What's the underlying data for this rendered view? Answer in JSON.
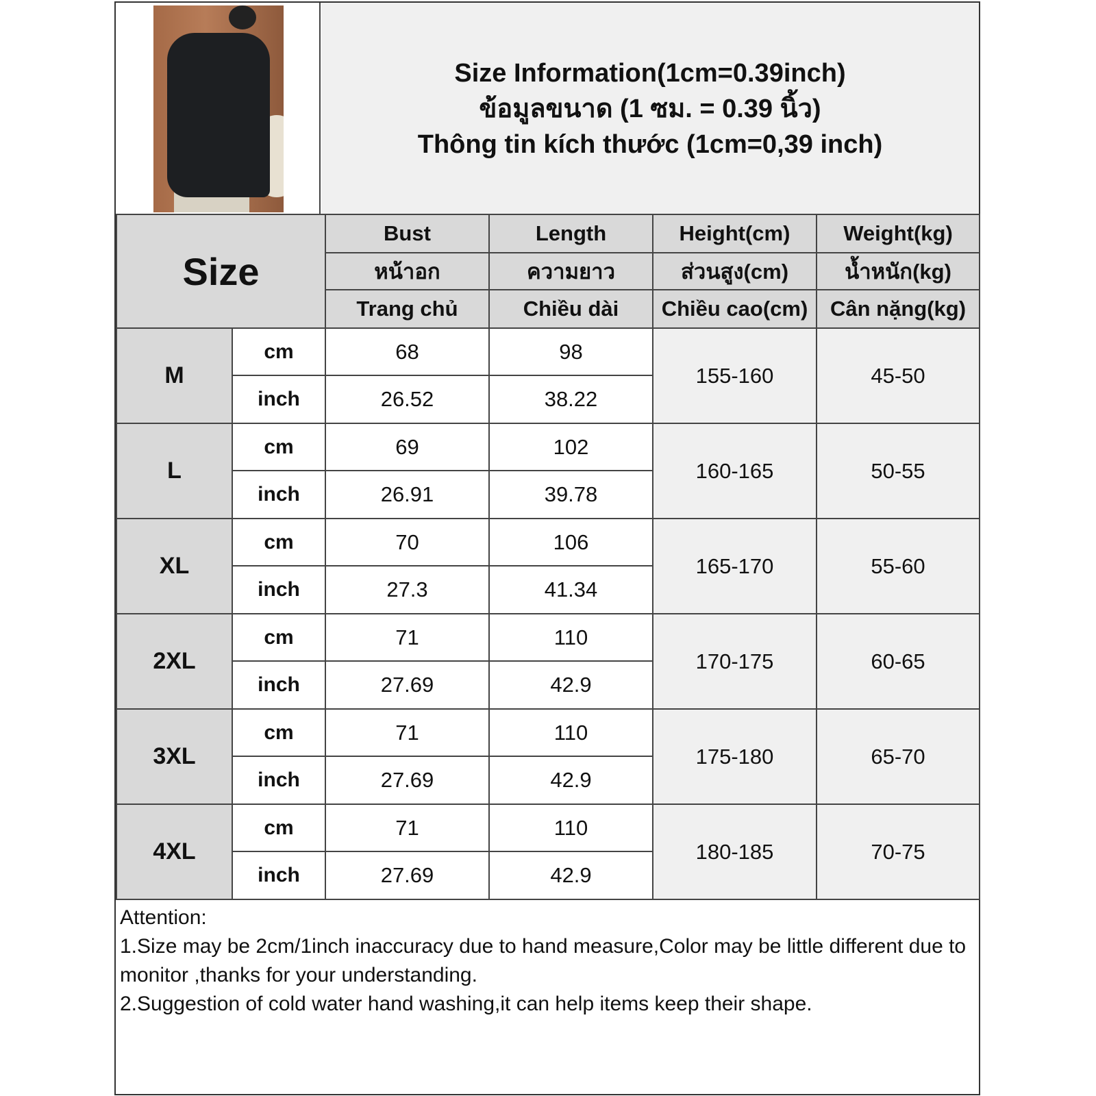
{
  "title_lines": [
    "Size Information(1cm=0.39inch)",
    "ข้อมูลขนาด (1 ซม. = 0.39 นิ้ว)",
    "Thông tin kích thước (1cm=0,39 inch)"
  ],
  "header": {
    "size_label": "Size",
    "columns": [
      [
        "Bust",
        "หน้าอก",
        "Trang chủ"
      ],
      [
        "Length",
        "ความยาว",
        "Chiều dài"
      ],
      [
        "Height(cm)",
        "ส่วนสูง(cm)",
        "Chiều cao(cm)"
      ],
      [
        "Weight(kg)",
        "น้ำหนัก(kg)",
        "Cân nặng(kg)"
      ]
    ]
  },
  "rows": [
    {
      "size": "M",
      "cm_label": "cm",
      "inch_label": "inch",
      "bust_cm": "68",
      "length_cm": "98",
      "bust_inch": "26.52",
      "length_inch": "38.22",
      "height": "155-160",
      "weight": "45-50"
    },
    {
      "size": "L",
      "cm_label": "cm",
      "inch_label": "inch",
      "bust_cm": "69",
      "length_cm": "102",
      "bust_inch": "26.91",
      "length_inch": "39.78",
      "height": "160-165",
      "weight": "50-55"
    },
    {
      "size": "XL",
      "cm_label": "cm",
      "inch_label": "inch",
      "bust_cm": "70",
      "length_cm": "106",
      "bust_inch": "27.3",
      "length_inch": "41.34",
      "height": "165-170",
      "weight": "55-60"
    },
    {
      "size": "2XL",
      "cm_label": "cm",
      "inch_label": "inch",
      "bust_cm": "71",
      "length_cm": "110",
      "bust_inch": "27.69",
      "length_inch": "42.9",
      "height": "170-175",
      "weight": "60-65"
    },
    {
      "size": "3XL",
      "cm_label": "cm",
      "inch_label": "inch",
      "bust_cm": "71",
      "length_cm": "110",
      "bust_inch": "27.69",
      "length_inch": "42.9",
      "height": "175-180",
      "weight": "65-70"
    },
    {
      "size": "4XL",
      "cm_label": "cm",
      "inch_label": "inch",
      "bust_cm": "71",
      "length_cm": "110",
      "bust_inch": "27.69",
      "length_inch": "42.9",
      "height": "180-185",
      "weight": "70-75"
    }
  ],
  "attention": {
    "heading": "Attention:",
    "notes": [
      "1.Size may be 2cm/1inch inaccuracy due to hand measure,Color may be little different due to monitor ,thanks for your understanding.",
      "2.Suggestion of cold water hand washing,it can help items keep their shape."
    ]
  }
}
